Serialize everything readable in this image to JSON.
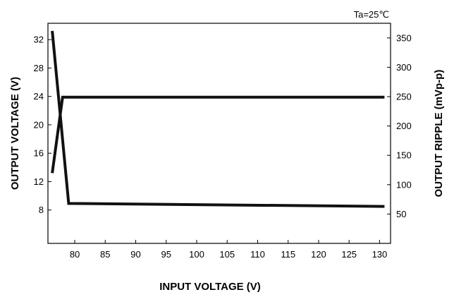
{
  "chart_data": {
    "type": "line",
    "condition": "Ta=25℃",
    "xlabel": "INPUT VOLTAGE (V)",
    "ylabel_left": "OUTPUT VOLTAGE (V)",
    "ylabel_right": "OUTPUT RIPPLE (mVp-p)",
    "xlim": [
      75.6,
      131.8
    ],
    "ylim_left": [
      3.3,
      34.3
    ],
    "ylim_right": [
      0,
      375
    ],
    "x_ticks": [
      80,
      85,
      90,
      95,
      100,
      105,
      110,
      115,
      120,
      125,
      130
    ],
    "y_left_ticks": [
      8,
      12,
      16,
      20,
      24,
      28,
      32
    ],
    "y_right_ticks": [
      50,
      100,
      150,
      200,
      250,
      300,
      350
    ],
    "grid": false,
    "series": [
      {
        "axis": "left",
        "x": [
          76.3,
          78.0,
          130.8
        ],
        "y": [
          13.2,
          23.9,
          23.9
        ]
      },
      {
        "axis": "right",
        "x": [
          76.3,
          79.0,
          130.8
        ],
        "y": [
          362,
          68,
          63
        ]
      }
    ],
    "colors": {
      "series": "#111111",
      "axis": "#000000"
    }
  }
}
